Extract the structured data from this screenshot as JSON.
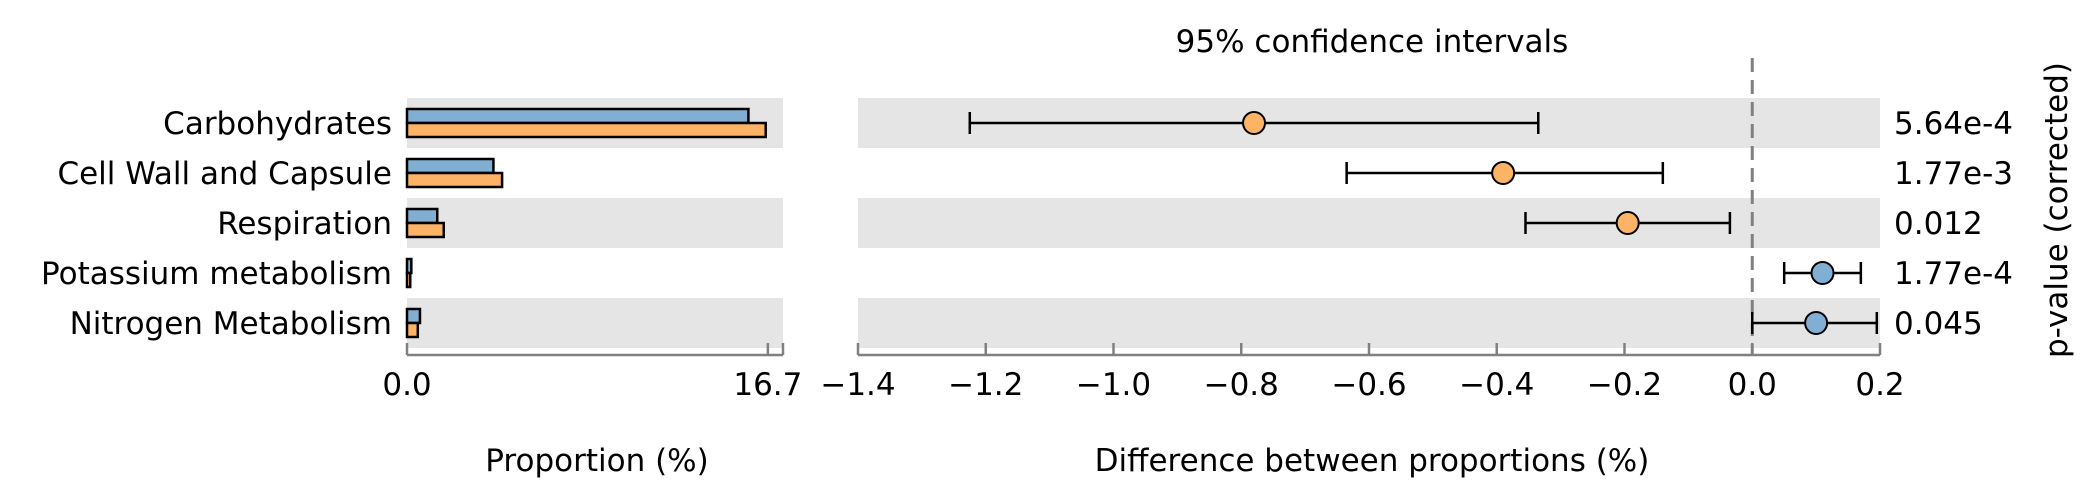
{
  "chart_data": [
    {
      "type": "bar",
      "orientation": "horizontal",
      "xlabel": "Proportion (%)",
      "xticks": [
        "0.0",
        "16.7"
      ],
      "xlim": [
        0,
        17.4
      ],
      "categories": [
        "Carbohydrates",
        "Cell Wall and Capsule",
        "Respiration",
        "Potassium metabolism",
        "Nitrogen Metabolism"
      ],
      "series": [
        {
          "color": "#80afd3",
          "values": [
            15.8,
            4.0,
            1.4,
            0.2,
            0.6
          ]
        },
        {
          "color": "#fdb366",
          "values": [
            16.6,
            4.4,
            1.7,
            0.15,
            0.5
          ]
        }
      ]
    },
    {
      "type": "scatter",
      "subtype": "confidence-intervals",
      "title": "95% confidence intervals",
      "xlabel": "Difference between proportions (%)",
      "right_label": "p-value (corrected)",
      "xlim": [
        -1.4,
        0.2
      ],
      "xticks": [
        "−1.4",
        "−1.2",
        "−1.0",
        "−0.8",
        "−0.6",
        "−0.4",
        "−0.2",
        "0.0",
        "0.2"
      ],
      "tick_values": [
        -1.4,
        -1.2,
        -1.0,
        -0.8,
        -0.6,
        -0.4,
        -0.2,
        0.0,
        0.2
      ],
      "reference_line": 0.0,
      "points": [
        {
          "category": "Carbohydrates",
          "diff": -0.78,
          "lower": -1.225,
          "upper": -0.335,
          "p_value": "5.64e-4",
          "color": "#fdb366"
        },
        {
          "category": "Cell Wall and Capsule",
          "diff": -0.39,
          "lower": -0.635,
          "upper": -0.14,
          "p_value": "1.77e-3",
          "color": "#fdb366"
        },
        {
          "category": "Respiration",
          "diff": -0.195,
          "lower": -0.355,
          "upper": -0.035,
          "p_value": "0.012",
          "color": "#fdb366"
        },
        {
          "category": "Potassium metabolism",
          "diff": 0.11,
          "lower": 0.05,
          "upper": 0.17,
          "p_value": "1.77e-4",
          "color": "#80afd3"
        },
        {
          "category": "Nitrogen Metabolism",
          "diff": 0.1,
          "lower": 0.0,
          "upper": 0.195,
          "p_value": "0.045",
          "color": "#80afd3"
        }
      ]
    }
  ],
  "colors": {
    "band": "#e5e5e5",
    "axis": "#808080",
    "ref_line": "#808080"
  }
}
